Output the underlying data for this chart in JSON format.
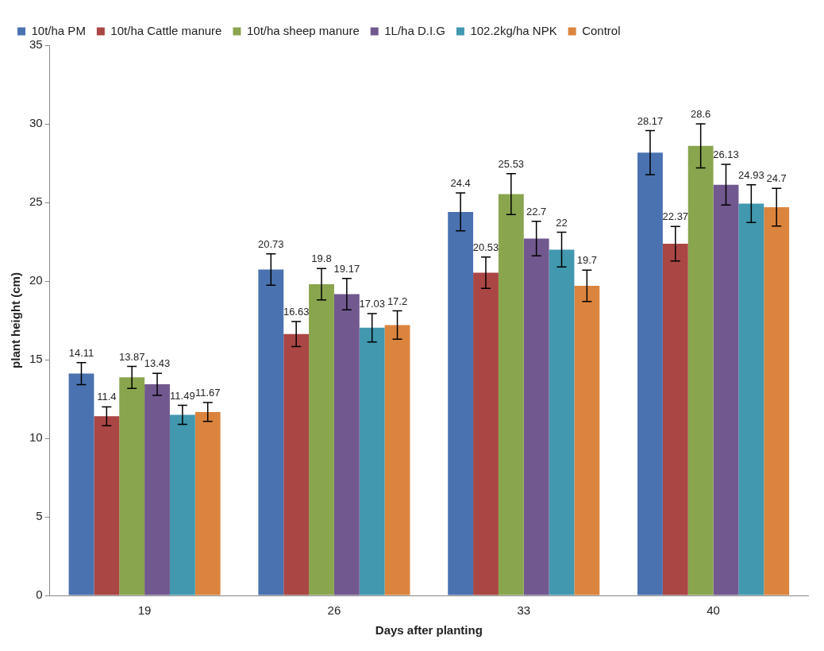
{
  "chart_data": {
    "type": "bar",
    "xlabel": "Days after planting",
    "ylabel": "plant height (cm)",
    "categories": [
      "19",
      "26",
      "33",
      "40"
    ],
    "series": [
      {
        "name": "10t/ha PM",
        "color": "#4a72b0",
        "values": [
          14.11,
          20.73,
          24.4,
          28.17
        ],
        "errors": [
          0.7,
          1.0,
          1.2,
          1.4
        ]
      },
      {
        "name": "10t/ha Cattle manure",
        "color": "#aa4644",
        "values": [
          11.4,
          16.63,
          20.53,
          22.37
        ],
        "errors": [
          0.6,
          0.8,
          1.0,
          1.1
        ]
      },
      {
        "name": "10t/ha sheep manure",
        "color": "#89a54e",
        "values": [
          13.87,
          19.8,
          25.53,
          28.6
        ],
        "errors": [
          0.7,
          1.0,
          1.3,
          1.4
        ]
      },
      {
        "name": "1L/ha D.I.G",
        "color": "#71588f",
        "values": [
          13.43,
          19.17,
          22.7,
          26.13
        ],
        "errors": [
          0.7,
          1.0,
          1.1,
          1.3
        ]
      },
      {
        "name": "102.2kg/ha NPK",
        "color": "#4198af",
        "values": [
          11.49,
          17.03,
          22,
          24.93
        ],
        "errors": [
          0.6,
          0.9,
          1.1,
          1.2
        ]
      },
      {
        "name": "Control",
        "color": "#db843d",
        "values": [
          11.67,
          17.2,
          19.7,
          24.7
        ],
        "errors": [
          0.6,
          0.9,
          1.0,
          1.2
        ]
      }
    ],
    "ylim": [
      0,
      35
    ],
    "yticks": [
      0,
      5,
      10,
      15,
      20,
      25,
      30,
      35
    ],
    "grid": false,
    "legend": "top",
    "data_labels": true
  }
}
